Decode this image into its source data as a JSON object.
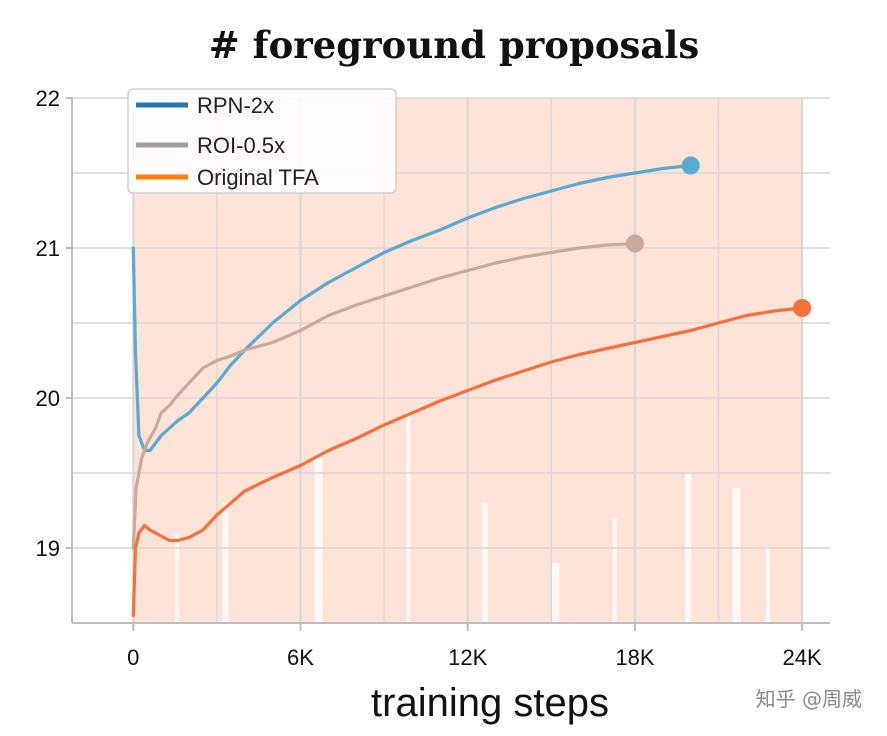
{
  "chart_data": {
    "type": "line",
    "title": "# foreground proposals",
    "xlabel": "training steps",
    "ylabel": "",
    "xlim": [
      -2200,
      25000
    ],
    "ylim": [
      18.5,
      22.0
    ],
    "xticks": [
      0,
      6000,
      12000,
      18000,
      24000
    ],
    "xtick_labels": [
      "0",
      "6K",
      "12K",
      "18K",
      "24K"
    ],
    "yticks": [
      19,
      20,
      21,
      22
    ],
    "ytick_labels": [
      "19",
      "20",
      "21",
      "22"
    ],
    "grid": true,
    "legend_position": "top-left",
    "series": [
      {
        "name": "RPN-2x",
        "legend_color": "#1f77b4",
        "line_color": "#5aa9cf",
        "x": [
          0,
          80,
          200,
          400,
          600,
          800,
          1000,
          1300,
          1600,
          2000,
          2500,
          3000,
          3500,
          4000,
          5000,
          6000,
          7000,
          8000,
          9000,
          10000,
          11000,
          12000,
          13000,
          14000,
          15000,
          16000,
          17000,
          18000,
          19000,
          20000
        ],
        "y": [
          21.0,
          20.3,
          19.75,
          19.65,
          19.65,
          19.7,
          19.75,
          19.8,
          19.85,
          19.9,
          20.0,
          20.1,
          20.22,
          20.32,
          20.5,
          20.65,
          20.77,
          20.87,
          20.97,
          21.05,
          21.12,
          21.2,
          21.27,
          21.33,
          21.38,
          21.43,
          21.47,
          21.5,
          21.53,
          21.55
        ]
      },
      {
        "name": "ROI-0.5x",
        "legend_color": "#9e9e9e",
        "line_color": "#c9a89d",
        "x": [
          0,
          100,
          300,
          500,
          800,
          1000,
          1300,
          1600,
          2000,
          2500,
          3000,
          3500,
          4000,
          5000,
          6000,
          7000,
          8000,
          9000,
          10000,
          11000,
          12000,
          13000,
          14000,
          15000,
          16000,
          17000,
          18000
        ],
        "y": [
          19.0,
          19.4,
          19.6,
          19.7,
          19.8,
          19.9,
          19.95,
          20.02,
          20.1,
          20.2,
          20.25,
          20.28,
          20.32,
          20.37,
          20.45,
          20.55,
          20.62,
          20.68,
          20.74,
          20.8,
          20.85,
          20.9,
          20.94,
          20.97,
          21.0,
          21.02,
          21.03
        ]
      },
      {
        "name": "Original TFA",
        "legend_color": "#ff7f0e",
        "line_color": "#f5703f",
        "x": [
          0,
          80,
          200,
          400,
          600,
          800,
          1000,
          1300,
          1600,
          2000,
          2500,
          3000,
          3500,
          4000,
          5000,
          6000,
          7000,
          8000,
          9000,
          10000,
          11000,
          12000,
          13000,
          14000,
          15000,
          16000,
          17000,
          18000,
          19000,
          20000,
          21000,
          22000,
          23000,
          24000
        ],
        "y": [
          18.55,
          19.0,
          19.1,
          19.15,
          19.12,
          19.1,
          19.08,
          19.05,
          19.05,
          19.07,
          19.12,
          19.22,
          19.3,
          19.38,
          19.47,
          19.55,
          19.65,
          19.73,
          19.82,
          19.9,
          19.98,
          20.05,
          20.12,
          20.18,
          20.24,
          20.29,
          20.33,
          20.37,
          20.41,
          20.45,
          20.5,
          20.55,
          20.58,
          20.6
        ]
      }
    ]
  },
  "watermark": "知乎 @周威",
  "colors": {
    "background_band": "#fde2d8",
    "grid": "#d6d6d6",
    "axis": "#bdbdbd"
  }
}
